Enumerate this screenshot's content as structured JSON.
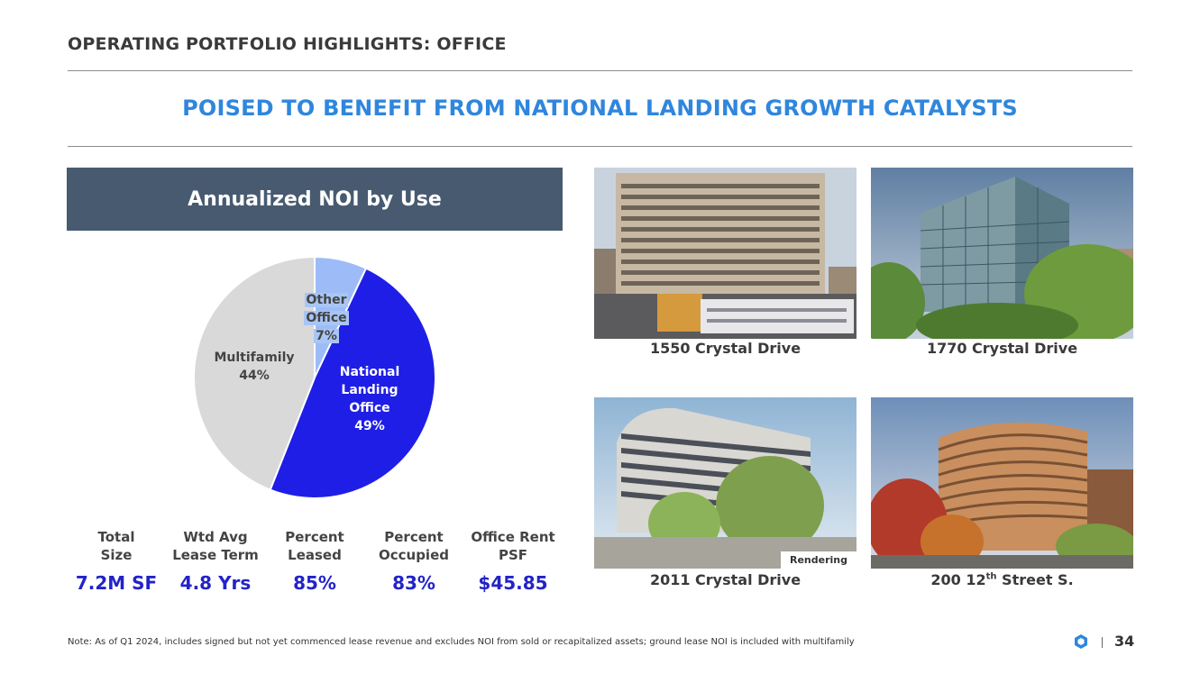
{
  "header": {
    "title": "OPERATING PORTFOLIO HIGHLIGHTS: OFFICE",
    "subtitle": "POISED TO BENEFIT FROM NATIONAL LANDING GROWTH CATALYSTS"
  },
  "panel": {
    "title": "Annualized NOI by Use"
  },
  "chart_data": {
    "type": "pie",
    "title": "Annualized NOI by Use",
    "slices": [
      {
        "label": "Other Office",
        "value": 7,
        "color": "#9dbcf7"
      },
      {
        "label": "National Landing Office",
        "value": 49,
        "color": "#1f1ee6"
      },
      {
        "label": "Multifamily",
        "value": 44,
        "color": "#d9d9d9"
      }
    ],
    "labels": {
      "other": {
        "line1": "Other",
        "line2": "Office",
        "pct": "7%"
      },
      "national": {
        "line1": "National",
        "line2": "Landing",
        "line3": "Office",
        "pct": "49%"
      },
      "multifamily": {
        "line1": "Multifamily",
        "pct": "44%"
      }
    }
  },
  "stats": [
    {
      "label1": "Total",
      "label2": "Size",
      "value": "7.2M SF"
    },
    {
      "label1": "Wtd Avg",
      "label2": "Lease Term",
      "value": "4.8 Yrs"
    },
    {
      "label1": "Percent",
      "label2": "Leased",
      "value": "85%"
    },
    {
      "label1": "Percent",
      "label2": "Occupied",
      "value": "83%"
    },
    {
      "label1": "Office Rent",
      "label2": "PSF",
      "value": "$45.85"
    }
  ],
  "properties": [
    {
      "name": "1550 Crystal Drive"
    },
    {
      "name": "1770 Crystal Drive"
    },
    {
      "name": "2011 Crystal Drive",
      "tag": "Rendering"
    },
    {
      "name_prefix": "200 12",
      "name_sup": "th",
      "name_suffix": " Street S."
    }
  ],
  "footer": {
    "note": "Note: As of Q1 2024, includes signed but not yet commenced lease revenue and excludes NOI from sold or recapitalized assets; ground lease NOI is included with multifamily",
    "page": "34"
  },
  "colors": {
    "accent": "#2f86dd",
    "panel": "#475a70",
    "value": "#2323c8"
  }
}
